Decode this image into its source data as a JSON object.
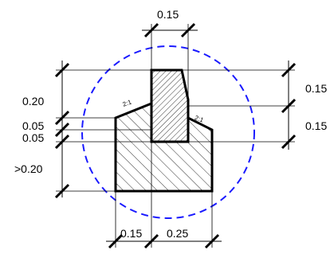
{
  "dimensions": {
    "top_width": "0.15",
    "left_upper_height": "0.20",
    "left_step_upper": "0.05",
    "left_step_lower": "0.05",
    "left_bottom_height": ">0.20",
    "right_upper_height": "0.15",
    "right_lower_height": "0.15",
    "bottom_left_width": "0.15",
    "bottom_right_width": "0.25"
  },
  "slopes": {
    "left": "2:1",
    "right": "2:1"
  },
  "colors": {
    "line": "#000000",
    "circle": "#1a1aff",
    "background": "#ffffff"
  }
}
